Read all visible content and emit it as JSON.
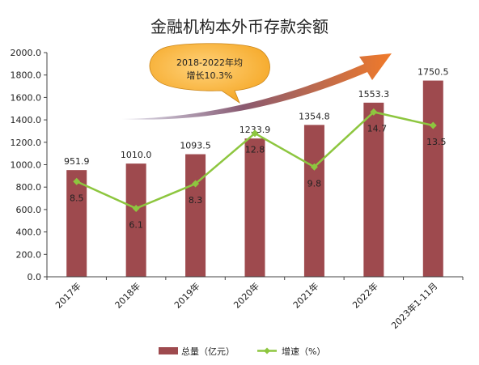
{
  "chart_data": {
    "type": "bar",
    "title": "金融机构本外币存款余额",
    "categories": [
      "2017年",
      "2018年",
      "2019年",
      "2020年",
      "2021年",
      "2022年",
      "2023年1-11月"
    ],
    "series": [
      {
        "name": "总量（亿元）",
        "type": "bar",
        "axis": "left",
        "color": "#9E4A4E",
        "values": [
          951.9,
          1010.0,
          1093.5,
          1233.9,
          1354.8,
          1553.3,
          1750.5
        ],
        "labels": [
          "951.9",
          "1010.0",
          "1093.5",
          "1233.9",
          "1354.8",
          "1553.3",
          "1750.5"
        ]
      },
      {
        "name": "增速（%）",
        "type": "line",
        "axis": "secondary-hidden",
        "color": "#8DC63F",
        "values": [
          8.5,
          6.1,
          8.3,
          12.8,
          9.8,
          14.7,
          13.5
        ],
        "labels": [
          "8.5",
          "6.1",
          "8.3",
          "12.8",
          "9.8",
          "14.7",
          "13.5"
        ]
      }
    ],
    "ylim": [
      0,
      2000
    ],
    "y_ticks": [
      "0.0",
      "200.0",
      "400.0",
      "600.0",
      "800.0",
      "1000.0",
      "1200.0",
      "1400.0",
      "1600.0",
      "1800.0",
      "2000.0"
    ],
    "y2lim": [
      0,
      20
    ],
    "grid": false,
    "legend_position": "bottom",
    "annotation": {
      "line1": "2018-2022年均",
      "line2": "增长10.3%",
      "bubble_color": "#F5A623",
      "arrow_colors": [
        "#6B5A8A",
        "#F07A2A"
      ]
    }
  }
}
